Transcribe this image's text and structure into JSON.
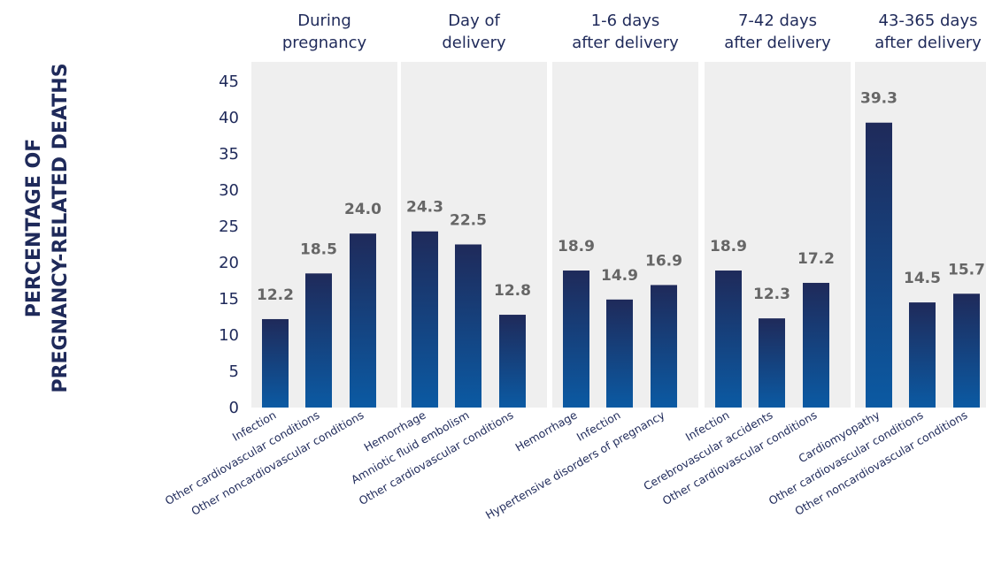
{
  "chart_data": {
    "type": "bar",
    "ylabel": "PERCENTAGE OF PREGNANCY-RELATED DEATHS",
    "ylabel_lines": [
      "PERCENTAGE OF",
      "PREGNANCY-RELATED DEATHS"
    ],
    "ylim": [
      0,
      45
    ],
    "yticks": [
      0,
      5,
      10,
      15,
      20,
      25,
      30,
      35,
      40,
      45
    ],
    "grid": false,
    "colors": {
      "bar_top": "#1f2a5a",
      "bar_bottom": "#0b5aa3",
      "panel": "#efefef",
      "label": "#666666",
      "text": "#1f2a5a"
    },
    "groups": [
      {
        "title": [
          "During",
          "pregnancy"
        ],
        "categories": [
          "Infection",
          "Other cardiovascular conditions",
          "Other noncardiovascular conditions"
        ],
        "values": [
          12.2,
          18.5,
          24.0
        ],
        "labels": [
          "12.2",
          "18.5",
          "24.0"
        ]
      },
      {
        "title": [
          "Day of",
          "delivery"
        ],
        "categories": [
          "Hemorrhage",
          "Amniotic fluid embolism",
          "Other cardiovascular conditions"
        ],
        "values": [
          24.3,
          22.5,
          12.8
        ],
        "labels": [
          "24.3",
          "22.5",
          "12.8"
        ]
      },
      {
        "title": [
          "1-6 days",
          "after delivery"
        ],
        "categories": [
          "Hemorrhage",
          "Infection",
          "Hypertensive disorders of pregnancy"
        ],
        "values": [
          18.9,
          14.9,
          16.9
        ],
        "labels": [
          "18.9",
          "14.9",
          "16.9"
        ]
      },
      {
        "title": [
          "7-42 days",
          "after delivery"
        ],
        "categories": [
          "Infection",
          "Cerebrovascular accidents",
          "Other cardiovascular conditions"
        ],
        "values": [
          18.9,
          12.3,
          17.2
        ],
        "labels": [
          "18.9",
          "12.3",
          "17.2"
        ]
      },
      {
        "title": [
          "43-365 days",
          "after delivery"
        ],
        "categories": [
          "Cardiomyopathy",
          "Other cardiovascular conditions",
          "Other noncardiovascular conditions"
        ],
        "values": [
          39.3,
          14.5,
          15.7
        ],
        "labels": [
          "39.3",
          "14.5",
          "15.7"
        ]
      }
    ]
  }
}
